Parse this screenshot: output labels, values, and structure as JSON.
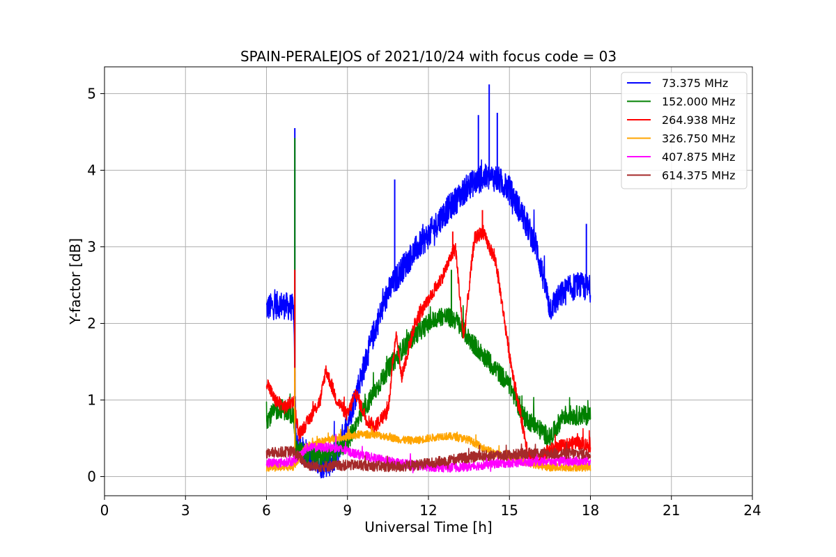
{
  "chart_data": {
    "type": "line",
    "title": "SPAIN-PERALEJOS of 2021/10/24 with focus code = 03",
    "xlabel": "Universal Time [h]",
    "ylabel": "Y-factor [dB]",
    "xlim": [
      0,
      24
    ],
    "ylim": [
      -0.25,
      5.35
    ],
    "xticks": [
      0,
      3,
      6,
      9,
      12,
      15,
      18,
      21,
      24
    ],
    "yticks": [
      0,
      1,
      2,
      3,
      4,
      5
    ],
    "grid": true,
    "legend_position": "top-right",
    "series": [
      {
        "name": " 73.375 MHz",
        "color": "#0000ff",
        "noise": 0.18,
        "spikes": [
          [
            7.05,
            4.55
          ],
          [
            10.75,
            3.88
          ],
          [
            14.25,
            5.12
          ],
          [
            13.85,
            4.72
          ],
          [
            14.55,
            4.75
          ],
          [
            17.85,
            3.3
          ]
        ],
        "x": [
          6.0,
          6.5,
          7.0,
          7.1,
          7.5,
          8.0,
          8.5,
          9.0,
          9.5,
          10.0,
          10.5,
          11.0,
          11.5,
          12.0,
          12.5,
          13.0,
          13.5,
          14.0,
          14.5,
          15.0,
          15.5,
          16.0,
          16.5,
          17.0,
          17.5,
          18.0
        ],
        "y": [
          2.2,
          2.25,
          2.2,
          0.4,
          0.3,
          0.15,
          0.2,
          0.7,
          1.3,
          1.9,
          2.4,
          2.7,
          2.95,
          3.15,
          3.4,
          3.6,
          3.8,
          3.9,
          3.9,
          3.75,
          3.4,
          3.0,
          2.2,
          2.4,
          2.5,
          2.45
        ]
      },
      {
        "name": "152.000 MHz",
        "color": "#008000",
        "noise": 0.13,
        "spikes": [
          [
            7.05,
            4.42
          ],
          [
            12.85,
            2.7
          ]
        ],
        "x": [
          6.0,
          6.5,
          7.0,
          7.1,
          7.5,
          8.0,
          8.5,
          9.0,
          9.5,
          10.0,
          10.5,
          11.0,
          11.5,
          12.0,
          12.5,
          13.0,
          13.5,
          14.0,
          14.5,
          15.0,
          15.5,
          16.0,
          16.5,
          17.0,
          17.5,
          18.0
        ],
        "y": [
          0.75,
          0.9,
          0.8,
          0.35,
          0.3,
          0.25,
          0.3,
          0.45,
          0.8,
          1.1,
          1.4,
          1.65,
          1.85,
          2.0,
          2.1,
          2.05,
          1.8,
          1.6,
          1.4,
          1.2,
          0.8,
          0.65,
          0.5,
          0.8,
          0.8,
          0.8
        ]
      },
      {
        "name": "264.938 MHz",
        "color": "#ff0000",
        "noise": 0.09,
        "spikes": [
          [
            7.05,
            2.7
          ],
          [
            14.0,
            3.48
          ],
          [
            12.9,
            3.2
          ]
        ],
        "x": [
          6.0,
          6.3,
          6.7,
          7.0,
          7.2,
          7.5,
          8.0,
          8.2,
          8.6,
          9.0,
          9.3,
          9.7,
          10.0,
          10.5,
          10.8,
          11.0,
          11.5,
          12.0,
          12.5,
          13.0,
          13.3,
          13.7,
          14.0,
          14.5,
          15.0,
          15.3,
          15.7,
          16.0,
          16.5,
          17.0,
          17.5,
          18.0
        ],
        "y": [
          1.25,
          1.0,
          0.9,
          1.0,
          0.55,
          0.7,
          1.0,
          1.4,
          1.0,
          0.8,
          1.1,
          0.75,
          0.65,
          0.85,
          1.9,
          1.3,
          2.0,
          2.3,
          2.6,
          3.0,
          1.8,
          3.1,
          3.2,
          2.8,
          1.6,
          1.0,
          0.3,
          0.2,
          0.35,
          0.4,
          0.45,
          0.4
        ]
      },
      {
        "name": "326.750 MHz",
        "color": "#ffa500",
        "noise": 0.05,
        "spikes": [
          [
            7.05,
            1.42
          ]
        ],
        "x": [
          6.0,
          6.5,
          7.0,
          7.5,
          8.0,
          8.5,
          9.0,
          9.5,
          10.0,
          10.5,
          11.0,
          11.5,
          12.0,
          12.5,
          13.0,
          13.5,
          14.0,
          14.5,
          15.0,
          15.5,
          16.0,
          16.5,
          17.0,
          17.5,
          18.0
        ],
        "y": [
          0.12,
          0.12,
          0.13,
          0.4,
          0.45,
          0.5,
          0.52,
          0.55,
          0.55,
          0.52,
          0.48,
          0.47,
          0.5,
          0.53,
          0.52,
          0.48,
          0.38,
          0.3,
          0.25,
          0.2,
          0.15,
          0.12,
          0.12,
          0.12,
          0.12
        ]
      },
      {
        "name": "407.875 MHz",
        "color": "#ff00ff",
        "noise": 0.06,
        "spikes": [],
        "x": [
          6.0,
          6.5,
          7.0,
          7.5,
          8.0,
          8.5,
          9.0,
          9.5,
          10.0,
          10.5,
          11.0,
          11.5,
          12.0,
          12.5,
          13.0,
          13.5,
          14.0,
          14.5,
          15.0,
          15.5,
          16.0,
          16.5,
          17.0,
          17.5,
          18.0
        ],
        "y": [
          0.18,
          0.18,
          0.2,
          0.38,
          0.38,
          0.38,
          0.33,
          0.28,
          0.24,
          0.2,
          0.17,
          0.15,
          0.13,
          0.12,
          0.12,
          0.13,
          0.15,
          0.17,
          0.18,
          0.19,
          0.2,
          0.2,
          0.2,
          0.2,
          0.2
        ]
      },
      {
        "name": "614.375 MHz",
        "color": "#a52a2a",
        "noise": 0.07,
        "spikes": [],
        "x": [
          6.0,
          6.5,
          7.0,
          7.5,
          8.0,
          8.5,
          9.0,
          9.5,
          10.0,
          10.5,
          11.0,
          11.5,
          12.0,
          12.5,
          13.0,
          13.5,
          14.0,
          14.5,
          15.0,
          15.5,
          16.0,
          16.5,
          17.0,
          17.5,
          18.0
        ],
        "y": [
          0.3,
          0.32,
          0.33,
          0.15,
          0.13,
          0.14,
          0.15,
          0.15,
          0.14,
          0.13,
          0.13,
          0.15,
          0.17,
          0.2,
          0.23,
          0.25,
          0.27,
          0.28,
          0.28,
          0.3,
          0.31,
          0.3,
          0.3,
          0.3,
          0.3
        ]
      }
    ]
  }
}
